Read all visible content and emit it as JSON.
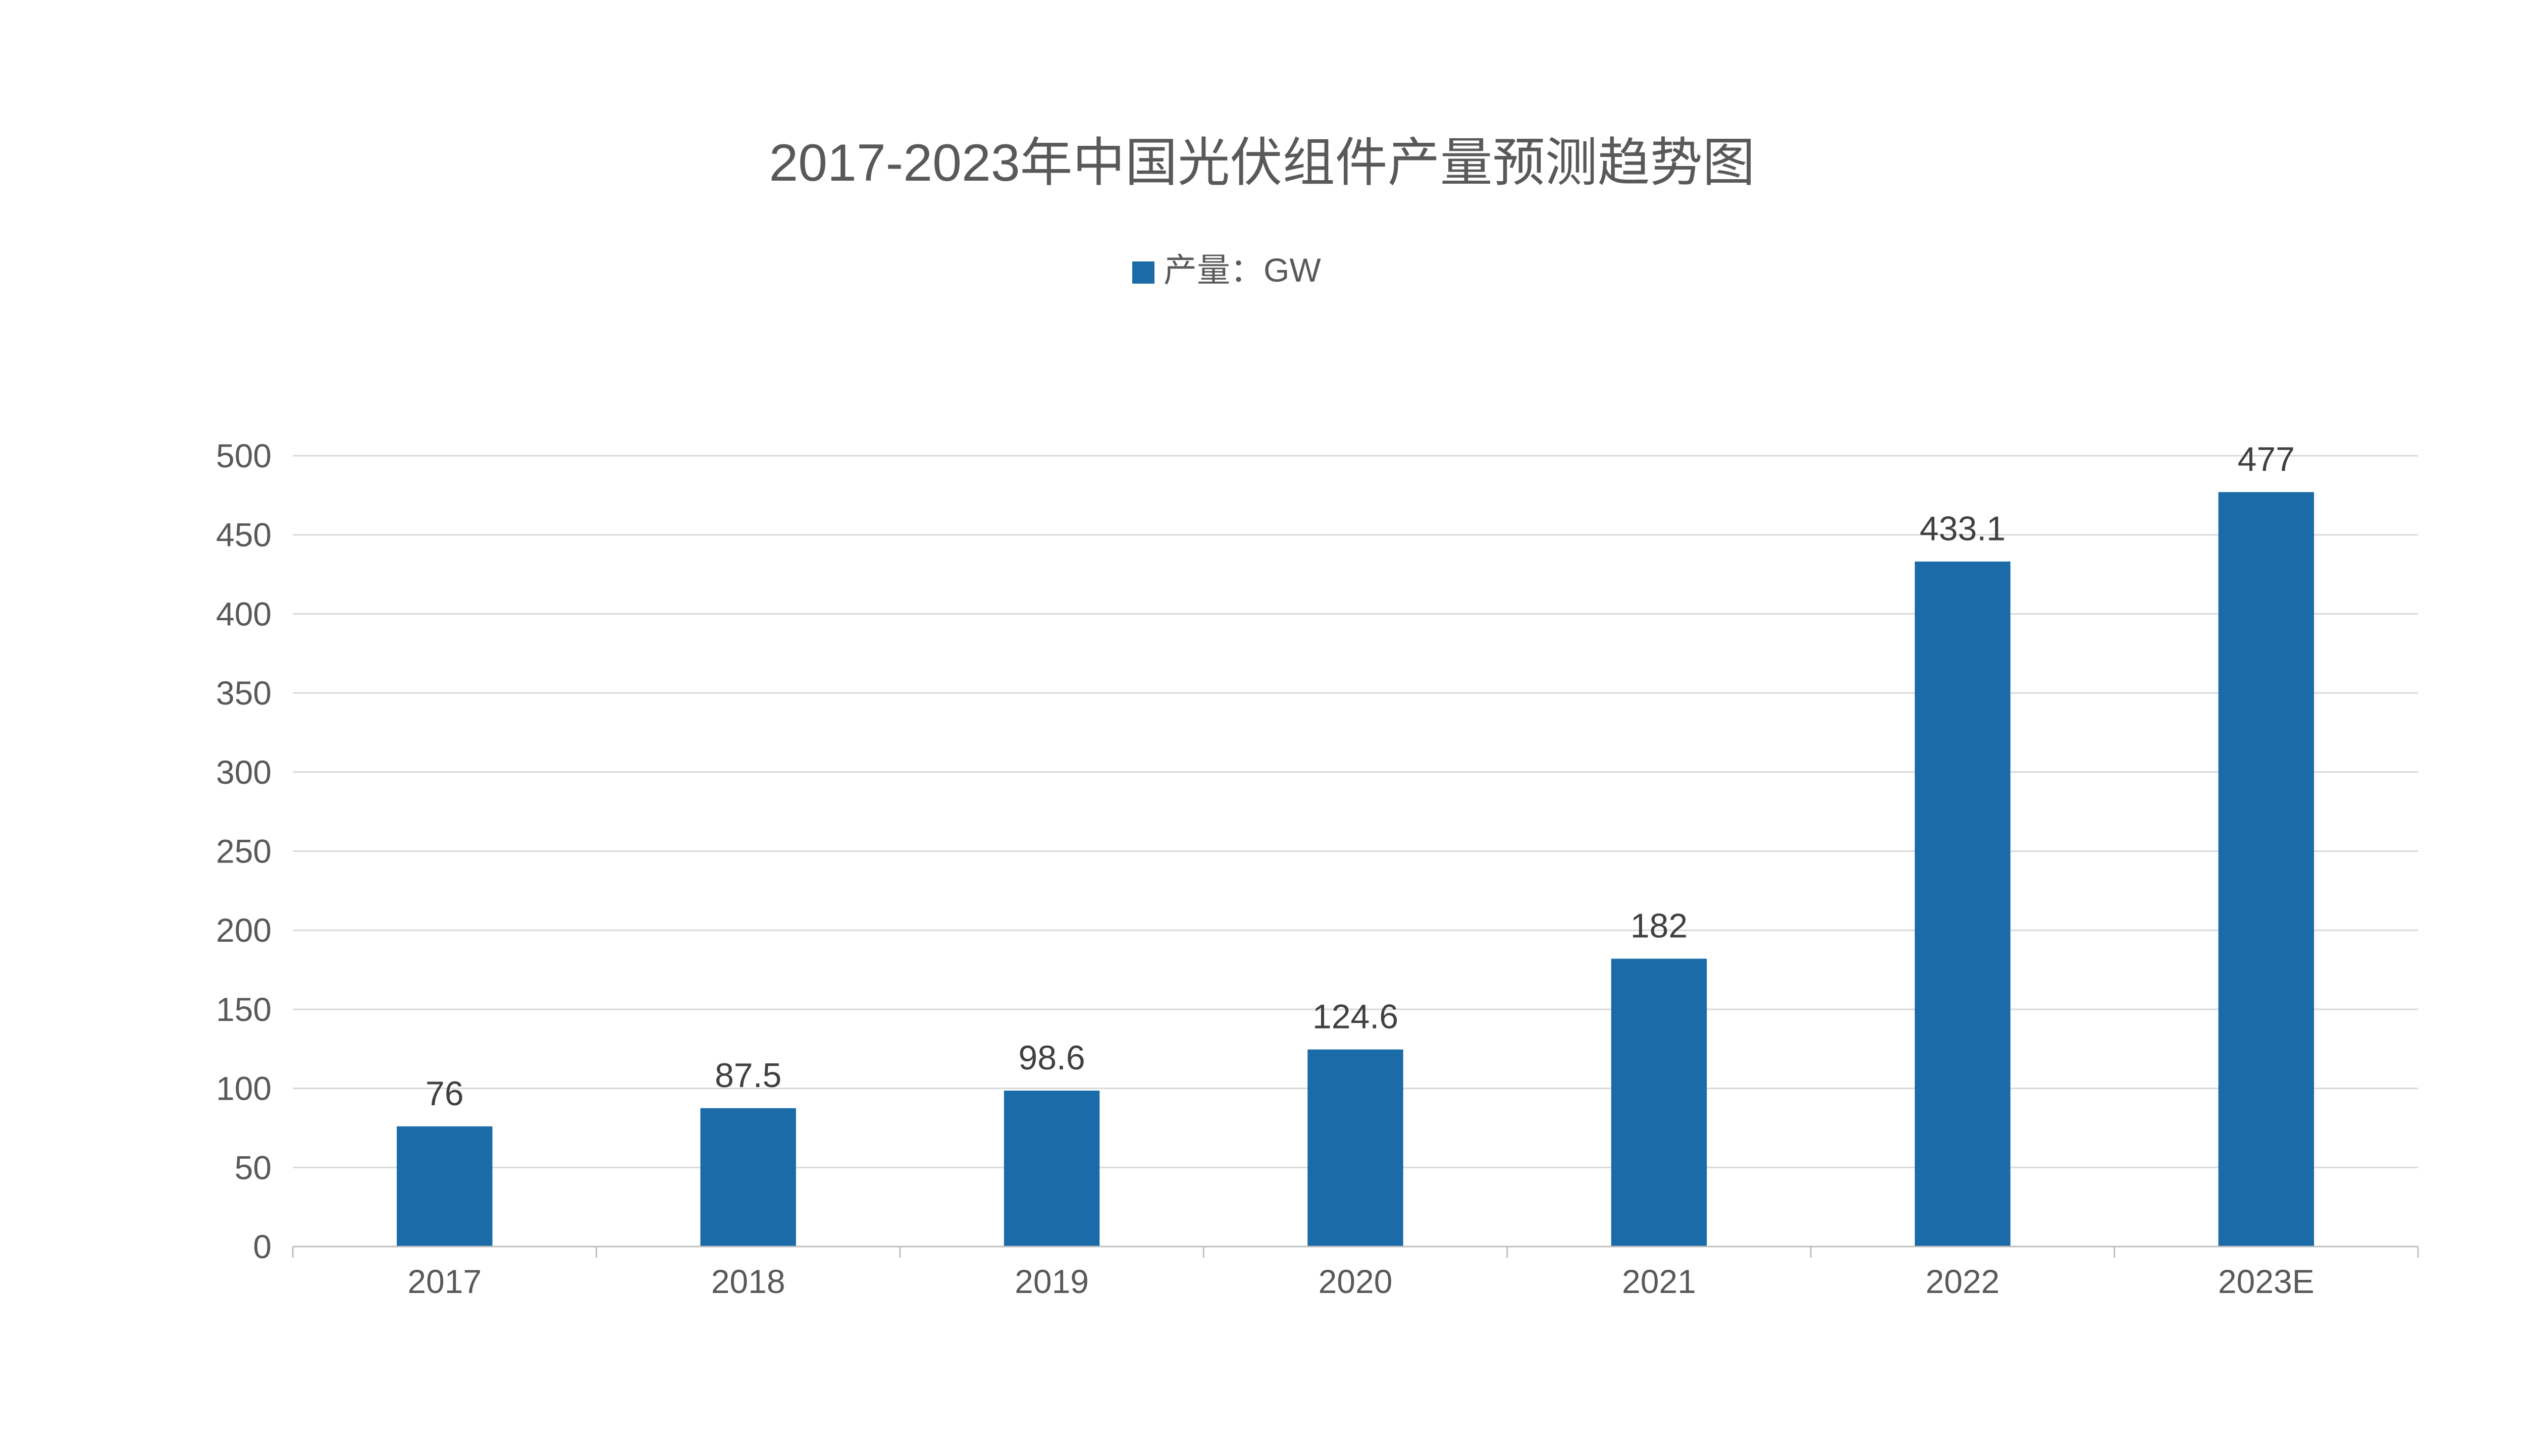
{
  "chart_data": {
    "type": "bar",
    "title": "2017-2023年中国光伏组件产量预测趋势图",
    "legend": {
      "position": "top",
      "entries": [
        {
          "label": "产量：GW",
          "color": "#1a6ba8"
        }
      ]
    },
    "categories": [
      "2017",
      "2018",
      "2019",
      "2020",
      "2021",
      "2022",
      "2023E"
    ],
    "series": [
      {
        "name": "产量：GW",
        "color": "#1a6ba8",
        "values": [
          76,
          87.5,
          98.6,
          124.6,
          182,
          433.1,
          477
        ],
        "labels": [
          "76",
          "87.5",
          "98.6",
          "124.6",
          "182",
          "433.1",
          "477"
        ]
      }
    ],
    "xlabel": "",
    "ylabel": "",
    "ylim": [
      0,
      500
    ],
    "yticks": [
      "0",
      "50",
      "100",
      "150",
      "200",
      "250",
      "300",
      "350",
      "400",
      "450",
      "500"
    ],
    "grid": true,
    "colors": {
      "bar": "#1a6ba8",
      "grid": "#d9d9d9",
      "axis": "#bfbfbf",
      "title": "#595959",
      "tick": "#595959",
      "label": "#404040"
    }
  }
}
